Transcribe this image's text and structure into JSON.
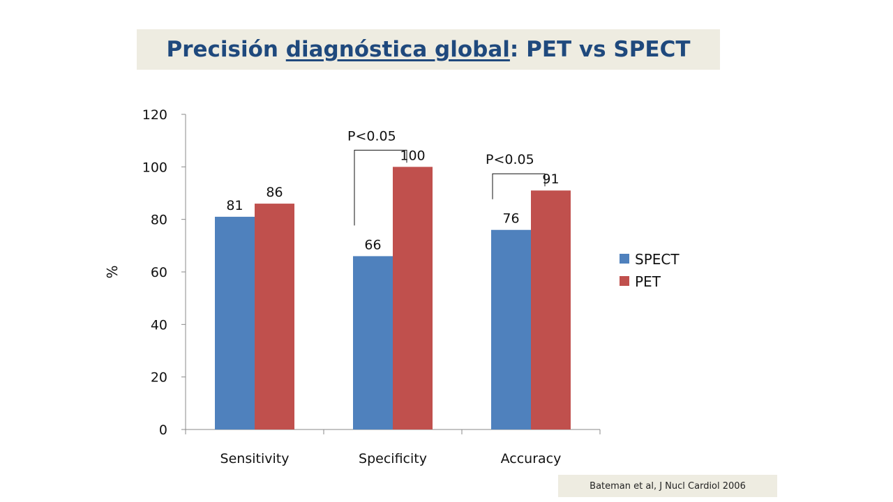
{
  "title": {
    "part1": "Precisión ",
    "part2": "diagnóstica global",
    "part3": ": PET vs SPECT"
  },
  "citation": "Bateman et al, J Nucl Cardiol 2006",
  "chart_data": {
    "type": "bar",
    "categories": [
      "Sensitivity",
      "Specificity",
      "Accuracy"
    ],
    "series": [
      {
        "name": "SPECT",
        "values": [
          81,
          66,
          76
        ],
        "color": "#4f81bd"
      },
      {
        "name": "PET",
        "values": [
          86,
          100,
          91
        ],
        "color": "#c0504d"
      }
    ],
    "ylabel": "%",
    "ylim": [
      0,
      120
    ],
    "yticks": [
      0,
      20,
      40,
      60,
      80,
      100,
      120
    ],
    "legend_position": "right",
    "grid": false,
    "annotations": [
      {
        "text": "P<0.05",
        "category": "Specificity"
      },
      {
        "text": "P<0.05",
        "category": "Accuracy"
      }
    ]
  }
}
